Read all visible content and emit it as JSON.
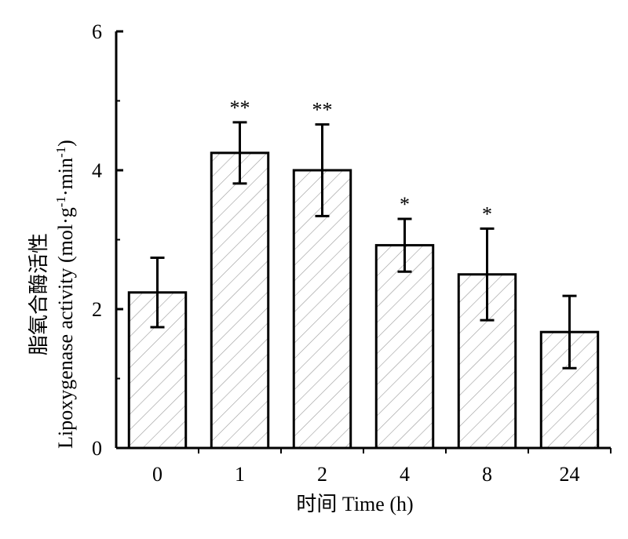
{
  "chart_data": {
    "type": "bar",
    "categories": [
      "0",
      "1",
      "2",
      "4",
      "8",
      "24"
    ],
    "values": [
      2.24,
      4.25,
      4.0,
      2.92,
      2.5,
      1.67
    ],
    "error_plus": [
      0.5,
      0.44,
      0.66,
      0.38,
      0.66,
      0.52
    ],
    "error_minus": [
      0.5,
      0.44,
      0.66,
      0.38,
      0.66,
      0.52
    ],
    "significance": [
      "",
      "**",
      "**",
      "*",
      "*",
      ""
    ],
    "xlabel": "时间 Time (h)",
    "ylabel_cn": "脂氧合酶活性",
    "ylabel_en": "Lipoxygenase activity (mol·g",
    "ylabel_unit_sup1": "-1",
    "ylabel_unit_mid": "·min",
    "ylabel_unit_sup2": "-1",
    "ylabel_unit_end": ")",
    "ylim": [
      0,
      6
    ],
    "yticks": [
      0,
      2,
      4,
      6
    ],
    "bar_fill": "hatched",
    "colors": {
      "bar_stroke": "#000000",
      "hatch": "#9a9a9a",
      "axis": "#000000"
    }
  }
}
